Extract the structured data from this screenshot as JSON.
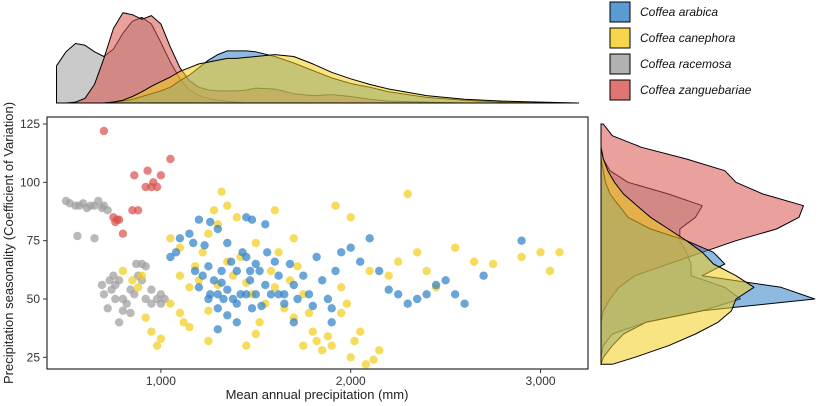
{
  "chart_data": {
    "type": "scatter",
    "title": "",
    "xlabel": "Mean annual precipitation (mm)",
    "ylabel": "Precipitation seasonality (Coefficient of Variation)",
    "xlim": [
      400,
      3250
    ],
    "ylim": [
      20,
      128
    ],
    "x_ticks": [
      1000,
      2000,
      3000
    ],
    "x_tick_labels": [
      "1,000",
      "2,000",
      "3,000"
    ],
    "y_ticks": [
      25,
      50,
      75,
      100,
      125
    ],
    "y_tick_labels": [
      "25",
      "50",
      "75",
      "100",
      "125"
    ],
    "grid": false,
    "legend_position": "top-right",
    "series": [
      {
        "name": "Coffea arabica",
        "color": "#3182c8",
        "points": [
          [
            1050,
            68
          ],
          [
            1080,
            70
          ],
          [
            1100,
            76
          ],
          [
            1150,
            78
          ],
          [
            1180,
            62
          ],
          [
            1200,
            55
          ],
          [
            1220,
            60
          ],
          [
            1250,
            64
          ],
          [
            1250,
            50
          ],
          [
            1260,
            52
          ],
          [
            1280,
            58
          ],
          [
            1300,
            52
          ],
          [
            1300,
            46
          ],
          [
            1320,
            62
          ],
          [
            1330,
            50
          ],
          [
            1350,
            74
          ],
          [
            1350,
            54
          ],
          [
            1370,
            66
          ],
          [
            1380,
            50
          ],
          [
            1400,
            48
          ],
          [
            1400,
            62
          ],
          [
            1420,
            52
          ],
          [
            1430,
            70
          ],
          [
            1450,
            68
          ],
          [
            1450,
            52
          ],
          [
            1470,
            58
          ],
          [
            1480,
            46
          ],
          [
            1500,
            65
          ],
          [
            1500,
            52
          ],
          [
            1520,
            62
          ],
          [
            1530,
            47
          ],
          [
            1550,
            56
          ],
          [
            1560,
            70
          ],
          [
            1580,
            52
          ],
          [
            1600,
            66
          ],
          [
            1620,
            60
          ],
          [
            1650,
            52
          ],
          [
            1650,
            48
          ],
          [
            1680,
            65
          ],
          [
            1700,
            56
          ],
          [
            1720,
            50
          ],
          [
            1750,
            60
          ],
          [
            1780,
            52
          ],
          [
            1800,
            47
          ],
          [
            1820,
            68
          ],
          [
            1850,
            58
          ],
          [
            1880,
            50
          ],
          [
            1900,
            46
          ],
          [
            1920,
            62
          ],
          [
            1950,
            70
          ],
          [
            2000,
            72
          ],
          [
            2050,
            66
          ],
          [
            2100,
            76
          ],
          [
            2150,
            62
          ],
          [
            2200,
            54
          ],
          [
            2250,
            52
          ],
          [
            2300,
            48
          ],
          [
            2350,
            50
          ],
          [
            2400,
            52
          ],
          [
            2450,
            56
          ],
          [
            2500,
            58
          ],
          [
            2550,
            52
          ],
          [
            2600,
            48
          ],
          [
            2700,
            60
          ],
          [
            2900,
            75
          ],
          [
            1450,
            85
          ],
          [
            1480,
            84
          ],
          [
            1200,
            84
          ],
          [
            1260,
            83
          ],
          [
            1300,
            80
          ],
          [
            1550,
            82
          ],
          [
            1350,
            43
          ],
          [
            1400,
            40
          ],
          [
            1900,
            40
          ],
          [
            1300,
            37
          ],
          [
            1700,
            40
          ],
          [
            1230,
            73
          ],
          [
            1170,
            74
          ],
          [
            1320,
            57
          ],
          [
            1470,
            62
          ],
          [
            1620,
            52
          ]
        ]
      },
      {
        "name": "Coffea canephora",
        "color": "#f4cd1e",
        "points": [
          [
            800,
            62
          ],
          [
            850,
            58
          ],
          [
            880,
            55
          ],
          [
            900,
            60
          ],
          [
            920,
            42
          ],
          [
            950,
            36
          ],
          [
            980,
            30
          ],
          [
            1000,
            33
          ],
          [
            1050,
            48
          ],
          [
            1100,
            44
          ],
          [
            1120,
            40
          ],
          [
            1150,
            55
          ],
          [
            1180,
            64
          ],
          [
            1200,
            58
          ],
          [
            1220,
            70
          ],
          [
            1250,
            78
          ],
          [
            1250,
            45
          ],
          [
            1280,
            88
          ],
          [
            1300,
            82
          ],
          [
            1300,
            56
          ],
          [
            1320,
            96
          ],
          [
            1350,
            90
          ],
          [
            1380,
            60
          ],
          [
            1400,
            85
          ],
          [
            1420,
            68
          ],
          [
            1450,
            57
          ],
          [
            1480,
            52
          ],
          [
            1500,
            74
          ],
          [
            1520,
            40
          ],
          [
            1550,
            48
          ],
          [
            1580,
            62
          ],
          [
            1600,
            55
          ],
          [
            1620,
            70
          ],
          [
            1650,
            46
          ],
          [
            1680,
            58
          ],
          [
            1700,
            76
          ],
          [
            1720,
            64
          ],
          [
            1750,
            52
          ],
          [
            1780,
            44
          ],
          [
            1800,
            36
          ],
          [
            1820,
            32
          ],
          [
            1850,
            28
          ],
          [
            1880,
            34
          ],
          [
            1900,
            30
          ],
          [
            1920,
            90
          ],
          [
            1950,
            55
          ],
          [
            1980,
            48
          ],
          [
            2000,
            85
          ],
          [
            2000,
            25
          ],
          [
            2020,
            32
          ],
          [
            2050,
            36
          ],
          [
            2080,
            22
          ],
          [
            2100,
            62
          ],
          [
            2120,
            24
          ],
          [
            2150,
            28
          ],
          [
            2200,
            60
          ],
          [
            2250,
            66
          ],
          [
            2300,
            95
          ],
          [
            2350,
            70
          ],
          [
            2400,
            62
          ],
          [
            2450,
            55
          ],
          [
            2550,
            72
          ],
          [
            2650,
            66
          ],
          [
            2750,
            65
          ],
          [
            2900,
            68
          ],
          [
            3000,
            70
          ],
          [
            3050,
            62
          ],
          [
            3100,
            70
          ],
          [
            1150,
            38
          ],
          [
            1100,
            72
          ],
          [
            1050,
            76
          ],
          [
            1600,
            88
          ],
          [
            1700,
            42
          ],
          [
            1750,
            30
          ],
          [
            1500,
            35
          ],
          [
            1450,
            30
          ],
          [
            1950,
            44
          ],
          [
            1350,
            66
          ],
          [
            1250,
            32
          ],
          [
            1100,
            60
          ]
        ]
      },
      {
        "name": "Coffea racemosa",
        "color": "#9e9e9e",
        "points": [
          [
            500,
            92
          ],
          [
            520,
            91
          ],
          [
            550,
            90
          ],
          [
            570,
            90
          ],
          [
            590,
            91
          ],
          [
            610,
            89
          ],
          [
            630,
            90
          ],
          [
            650,
            90
          ],
          [
            670,
            92
          ],
          [
            690,
            89
          ],
          [
            700,
            90
          ],
          [
            720,
            88
          ],
          [
            560,
            77
          ],
          [
            650,
            76
          ],
          [
            690,
            56
          ],
          [
            700,
            52
          ],
          [
            720,
            46
          ],
          [
            740,
            54
          ],
          [
            750,
            60
          ],
          [
            760,
            56
          ],
          [
            780,
            58
          ],
          [
            800,
            50
          ],
          [
            820,
            48
          ],
          [
            840,
            54
          ],
          [
            860,
            52
          ],
          [
            880,
            60
          ],
          [
            900,
            58
          ],
          [
            920,
            50
          ],
          [
            950,
            48
          ],
          [
            980,
            50
          ],
          [
            1000,
            48
          ],
          [
            870,
            65
          ],
          [
            900,
            65
          ],
          [
            920,
            64
          ],
          [
            950,
            54
          ],
          [
            1000,
            52
          ],
          [
            1020,
            50
          ],
          [
            840,
            44
          ],
          [
            800,
            45
          ],
          [
            780,
            40
          ],
          [
            760,
            50
          ],
          [
            730,
            58
          ]
        ]
      },
      {
        "name": "Coffea zanguebariae",
        "color": "#d9534f",
        "points": [
          [
            700,
            122
          ],
          [
            750,
            85
          ],
          [
            760,
            83
          ],
          [
            770,
            84
          ],
          [
            780,
            84
          ],
          [
            800,
            78
          ],
          [
            850,
            88
          ],
          [
            880,
            88
          ],
          [
            920,
            98
          ],
          [
            950,
            98
          ],
          [
            960,
            100
          ],
          [
            980,
            98
          ],
          [
            1000,
            103
          ],
          [
            1050,
            110
          ],
          [
            930,
            105
          ],
          [
            860,
            103
          ]
        ]
      }
    ],
    "top_density": {
      "note": "marginal density of mean annual precipitation (relative height, 0-1)",
      "x": [
        450,
        500,
        550,
        600,
        650,
        700,
        750,
        800,
        850,
        900,
        950,
        1000,
        1050,
        1100,
        1150,
        1200,
        1250,
        1300,
        1350,
        1400,
        1450,
        1500,
        1600,
        1700,
        1800,
        1900,
        2000,
        2100,
        2200,
        2400,
        2600,
        2800,
        3000,
        3200
      ],
      "Coffea arabica": [
        0,
        0,
        0,
        0,
        0,
        0,
        0.01,
        0.02,
        0.04,
        0.07,
        0.1,
        0.13,
        0.17,
        0.24,
        0.3,
        0.38,
        0.46,
        0.52,
        0.56,
        0.56,
        0.56,
        0.55,
        0.5,
        0.43,
        0.35,
        0.27,
        0.21,
        0.17,
        0.12,
        0.06,
        0.03,
        0.01,
        0,
        0
      ],
      "Coffea canephora": [
        0,
        0,
        0,
        0,
        0,
        0,
        0.01,
        0.03,
        0.07,
        0.12,
        0.18,
        0.23,
        0.28,
        0.34,
        0.38,
        0.42,
        0.44,
        0.46,
        0.48,
        0.48,
        0.49,
        0.5,
        0.52,
        0.5,
        0.42,
        0.33,
        0.26,
        0.2,
        0.15,
        0.08,
        0.04,
        0.02,
        0.01,
        0
      ],
      "Coffea racemosa": [
        0.4,
        0.55,
        0.64,
        0.62,
        0.55,
        0.5,
        0.58,
        0.75,
        0.88,
        0.92,
        0.85,
        0.65,
        0.44,
        0.26,
        0.14,
        0.08,
        0.05,
        0.03,
        0.02,
        0.01,
        0,
        0,
        0,
        0,
        0,
        0,
        0,
        0,
        0,
        0,
        0,
        0,
        0,
        0
      ],
      "Coffea zanguebariae": [
        0,
        0,
        0.01,
        0.05,
        0.2,
        0.48,
        0.8,
        0.97,
        0.95,
        0.9,
        0.94,
        0.85,
        0.6,
        0.38,
        0.24,
        0.17,
        0.14,
        0.13,
        0.13,
        0.13,
        0.14,
        0.16,
        0.15,
        0.1,
        0.08,
        0.09,
        0.07,
        0.04,
        0.02,
        0.01,
        0,
        0,
        0,
        0
      ]
    },
    "right_density": {
      "note": "marginal density of precipitation seasonality (relative width, 0-1)",
      "y": [
        22,
        25,
        30,
        35,
        40,
        45,
        50,
        55,
        60,
        65,
        70,
        75,
        80,
        85,
        90,
        95,
        100,
        105,
        110,
        115,
        120,
        125
      ],
      "Coffea arabica": [
        0,
        0.01,
        0.05,
        0.1,
        0.2,
        0.45,
        0.95,
        0.8,
        0.45,
        0.55,
        0.5,
        0.38,
        0.22,
        0.12,
        0.08,
        0.04,
        0.02,
        0.01,
        0,
        0,
        0,
        0
      ],
      "Coffea canephora": [
        0.05,
        0.15,
        0.3,
        0.42,
        0.52,
        0.58,
        0.6,
        0.68,
        0.6,
        0.5,
        0.45,
        0.38,
        0.3,
        0.22,
        0.16,
        0.1,
        0.06,
        0.03,
        0.01,
        0,
        0,
        0
      ],
      "Coffea racemosa": [
        0,
        0,
        0.01,
        0.05,
        0.2,
        0.45,
        0.62,
        0.55,
        0.4,
        0.4,
        0.38,
        0.35,
        0.35,
        0.42,
        0.45,
        0.3,
        0.12,
        0.04,
        0.01,
        0,
        0,
        0
      ],
      "Coffea zanguebariae": [
        0,
        0,
        0,
        0,
        0,
        0.01,
        0.04,
        0.08,
        0.15,
        0.3,
        0.45,
        0.6,
        0.78,
        0.88,
        0.9,
        0.72,
        0.6,
        0.55,
        0.38,
        0.18,
        0.05,
        0.01
      ]
    }
  },
  "legend": {
    "items": [
      {
        "label": "Coffea arabica",
        "color": "#3182c8"
      },
      {
        "label": "Coffea canephora",
        "color": "#f4cd1e"
      },
      {
        "label": "Coffea racemosa",
        "color": "#9e9e9e"
      },
      {
        "label": "Coffea zanguebariae",
        "color": "#d9534f"
      }
    ]
  }
}
